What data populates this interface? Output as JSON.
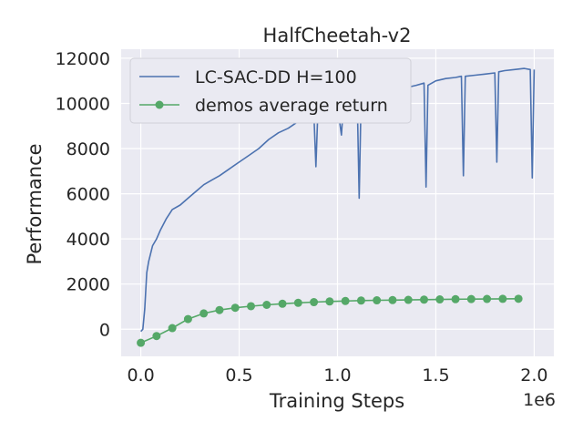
{
  "chart_data": {
    "type": "line",
    "title": "HalfCheetah-v2",
    "xlabel": "Training Steps",
    "ylabel": "Performance",
    "x_offset_label": "1e6",
    "xlim": [
      -0.1,
      2.1
    ],
    "ylim": [
      -1200,
      12400
    ],
    "x_ticks": [
      0.0,
      0.5,
      1.0,
      1.5,
      2.0
    ],
    "x_tick_labels": [
      "0.0",
      "0.5",
      "1.0",
      "1.5",
      "2.0"
    ],
    "y_ticks": [
      0,
      2000,
      4000,
      6000,
      8000,
      10000,
      12000
    ],
    "y_tick_labels": [
      "0",
      "2000",
      "4000",
      "6000",
      "8000",
      "10000",
      "12000"
    ],
    "grid": true,
    "legend_position": "top-left",
    "colors": {
      "background": "#eaeaf2",
      "grid": "#ffffff",
      "series1": "#4c72b0",
      "series2": "#55a868"
    },
    "series": [
      {
        "name": "LC-SAC-DD H=100",
        "style": "line",
        "x": [
          0.0,
          0.01,
          0.02,
          0.03,
          0.04,
          0.06,
          0.08,
          0.1,
          0.13,
          0.16,
          0.2,
          0.24,
          0.28,
          0.32,
          0.36,
          0.4,
          0.45,
          0.5,
          0.55,
          0.6,
          0.65,
          0.7,
          0.75,
          0.8,
          0.85,
          0.88,
          0.89,
          0.9,
          0.95,
          1.0,
          1.02,
          1.03,
          1.04,
          1.05,
          1.1,
          1.11,
          1.12,
          1.15,
          1.2,
          1.25,
          1.3,
          1.35,
          1.4,
          1.44,
          1.45,
          1.46,
          1.5,
          1.55,
          1.6,
          1.63,
          1.64,
          1.65,
          1.7,
          1.75,
          1.8,
          1.81,
          1.82,
          1.85,
          1.9,
          1.95,
          1.98,
          1.99,
          2.0
        ],
        "y": [
          -100,
          0,
          900,
          2500,
          3000,
          3700,
          4000,
          4400,
          4900,
          5300,
          5500,
          5800,
          6100,
          6400,
          6600,
          6800,
          7100,
          7400,
          7700,
          8000,
          8400,
          8700,
          8900,
          9200,
          9400,
          9500,
          7200,
          9600,
          9700,
          9900,
          8600,
          9900,
          10000,
          10100,
          10300,
          5800,
          10200,
          10300,
          10400,
          10500,
          10600,
          10700,
          10800,
          10900,
          6300,
          10800,
          11000,
          11100,
          11150,
          11200,
          6800,
          11200,
          11250,
          11300,
          11350,
          7400,
          11400,
          11450,
          11500,
          11550,
          11500,
          6700,
          11500
        ]
      },
      {
        "name": "demos average return",
        "style": "line-markers",
        "x": [
          0.0,
          0.08,
          0.16,
          0.24,
          0.32,
          0.4,
          0.48,
          0.56,
          0.64,
          0.72,
          0.8,
          0.88,
          0.96,
          1.04,
          1.12,
          1.2,
          1.28,
          1.36,
          1.44,
          1.52,
          1.6,
          1.68,
          1.76,
          1.84,
          1.92
        ],
        "y": [
          -600,
          -300,
          50,
          450,
          700,
          850,
          950,
          1020,
          1080,
          1130,
          1170,
          1200,
          1230,
          1250,
          1270,
          1280,
          1290,
          1300,
          1310,
          1320,
          1330,
          1335,
          1340,
          1345,
          1350
        ]
      }
    ]
  }
}
